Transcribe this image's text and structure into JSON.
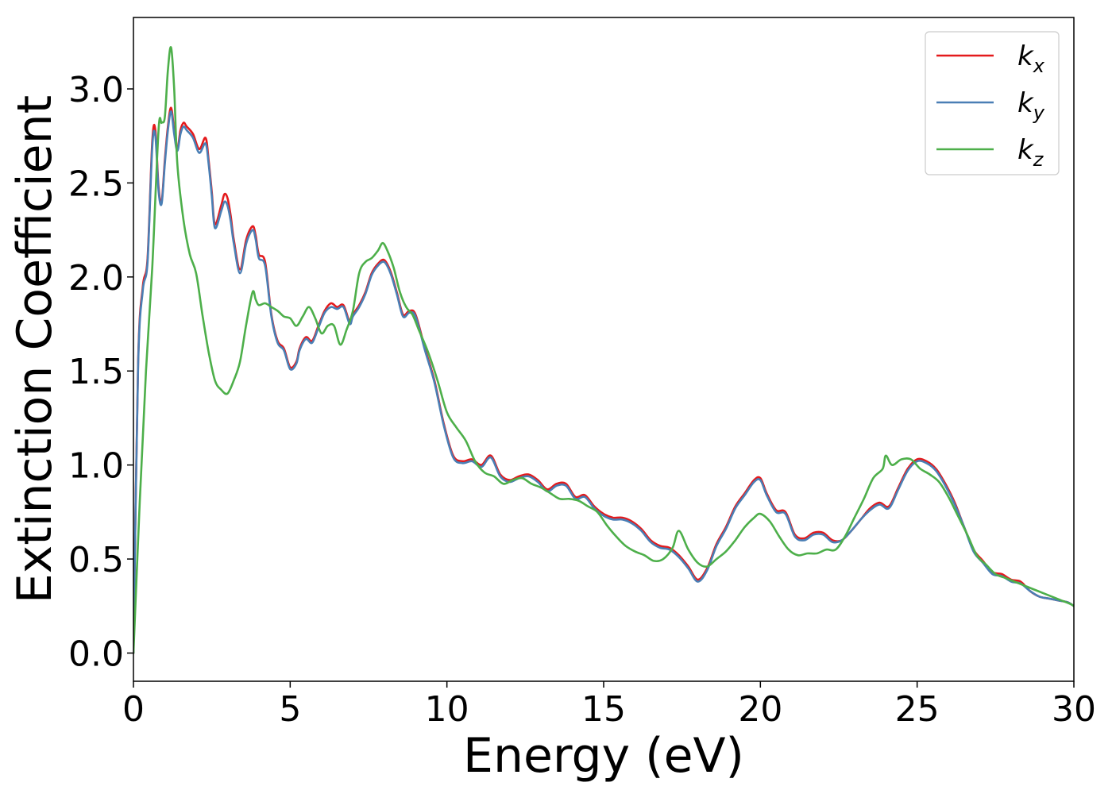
{
  "chart_data": {
    "type": "line",
    "xlabel": "Energy (eV)",
    "ylabel": "Extinction Coefficient",
    "xlim": [
      0,
      30
    ],
    "ylim": [
      -0.15,
      3.38
    ],
    "x_ticks": [
      0,
      5,
      10,
      15,
      20,
      25,
      30
    ],
    "y_ticks": [
      0.0,
      0.5,
      1.0,
      1.5,
      2.0,
      2.5,
      3.0
    ],
    "x_tick_labels": [
      "0",
      "5",
      "10",
      "15",
      "20",
      "25",
      "30"
    ],
    "y_tick_labels": [
      "0.0",
      "0.5",
      "1.0",
      "1.5",
      "2.0",
      "2.5",
      "3.0"
    ],
    "grid": false,
    "legend_position": "top-right",
    "series": [
      {
        "name": "k_x",
        "label_base": "k",
        "label_sub": "x",
        "color": "#e41a1c",
        "x": [
          0.0,
          0.15,
          0.3,
          0.45,
          0.6,
          0.7,
          0.8,
          0.9,
          1.0,
          1.1,
          1.2,
          1.3,
          1.4,
          1.5,
          1.6,
          1.7,
          1.9,
          2.1,
          2.3,
          2.4,
          2.5,
          2.6,
          2.8,
          2.9,
          3.0,
          3.1,
          3.2,
          3.4,
          3.6,
          3.8,
          3.9,
          4.0,
          4.2,
          4.4,
          4.6,
          4.8,
          5.0,
          5.2,
          5.3,
          5.5,
          5.7,
          5.9,
          6.1,
          6.3,
          6.5,
          6.7,
          6.9,
          7.0,
          7.2,
          7.4,
          7.6,
          7.8,
          8.0,
          8.2,
          8.4,
          8.6,
          8.8,
          9.0,
          9.3,
          9.6,
          9.9,
          10.2,
          10.5,
          10.8,
          11.1,
          11.4,
          11.7,
          12.0,
          12.3,
          12.6,
          12.9,
          13.2,
          13.5,
          13.8,
          14.1,
          14.4,
          14.7,
          15.0,
          15.3,
          15.6,
          15.9,
          16.2,
          16.5,
          16.8,
          17.1,
          17.4,
          17.7,
          18.0,
          18.3,
          18.6,
          18.9,
          19.2,
          19.5,
          19.8,
          20.0,
          20.2,
          20.5,
          20.8,
          21.1,
          21.4,
          21.7,
          22.0,
          22.3,
          22.6,
          22.9,
          23.2,
          23.5,
          23.8,
          24.1,
          24.4,
          24.7,
          25.0,
          25.3,
          25.6,
          25.9,
          26.2,
          26.5,
          26.8,
          27.1,
          27.4,
          27.7,
          28.0,
          28.3,
          28.6,
          28.9,
          29.2,
          29.5,
          29.8,
          30.0
        ],
        "y": [
          0.0,
          1.55,
          1.95,
          2.1,
          2.72,
          2.78,
          2.48,
          2.4,
          2.62,
          2.8,
          2.9,
          2.78,
          2.68,
          2.78,
          2.82,
          2.8,
          2.76,
          2.68,
          2.74,
          2.62,
          2.45,
          2.28,
          2.38,
          2.44,
          2.42,
          2.33,
          2.2,
          2.04,
          2.2,
          2.27,
          2.22,
          2.12,
          2.08,
          1.8,
          1.66,
          1.62,
          1.52,
          1.55,
          1.62,
          1.68,
          1.66,
          1.74,
          1.82,
          1.86,
          1.84,
          1.85,
          1.76,
          1.8,
          1.85,
          1.92,
          2.02,
          2.07,
          2.09,
          2.03,
          1.92,
          1.8,
          1.82,
          1.8,
          1.62,
          1.45,
          1.22,
          1.05,
          1.02,
          1.03,
          1.0,
          1.05,
          0.95,
          0.92,
          0.94,
          0.95,
          0.92,
          0.87,
          0.9,
          0.9,
          0.83,
          0.84,
          0.78,
          0.74,
          0.72,
          0.72,
          0.7,
          0.66,
          0.6,
          0.57,
          0.56,
          0.52,
          0.46,
          0.39,
          0.45,
          0.58,
          0.67,
          0.78,
          0.85,
          0.92,
          0.93,
          0.85,
          0.76,
          0.75,
          0.63,
          0.61,
          0.64,
          0.64,
          0.6,
          0.6,
          0.65,
          0.71,
          0.77,
          0.8,
          0.78,
          0.88,
          0.98,
          1.03,
          1.02,
          0.98,
          0.9,
          0.8,
          0.67,
          0.55,
          0.49,
          0.43,
          0.42,
          0.39,
          0.38,
          0.33,
          0.3,
          0.29,
          0.28,
          0.27,
          0.25
        ]
      },
      {
        "name": "k_y",
        "label_base": "k",
        "label_sub": "y",
        "color": "#4a7fb5",
        "x": [
          0.0,
          0.15,
          0.3,
          0.45,
          0.6,
          0.7,
          0.8,
          0.9,
          1.0,
          1.1,
          1.2,
          1.3,
          1.4,
          1.5,
          1.6,
          1.7,
          1.9,
          2.1,
          2.3,
          2.4,
          2.5,
          2.6,
          2.8,
          2.9,
          3.0,
          3.1,
          3.2,
          3.4,
          3.6,
          3.8,
          3.9,
          4.0,
          4.2,
          4.4,
          4.6,
          4.8,
          5.0,
          5.2,
          5.3,
          5.5,
          5.7,
          5.9,
          6.1,
          6.3,
          6.5,
          6.7,
          6.9,
          7.0,
          7.2,
          7.4,
          7.6,
          7.8,
          8.0,
          8.2,
          8.4,
          8.6,
          8.8,
          9.0,
          9.3,
          9.6,
          9.9,
          10.2,
          10.5,
          10.8,
          11.1,
          11.4,
          11.7,
          12.0,
          12.3,
          12.6,
          12.9,
          13.2,
          13.5,
          13.8,
          14.1,
          14.4,
          14.7,
          15.0,
          15.3,
          15.6,
          15.9,
          16.2,
          16.5,
          16.8,
          17.1,
          17.4,
          17.7,
          18.0,
          18.3,
          18.6,
          18.9,
          19.2,
          19.5,
          19.8,
          20.0,
          20.2,
          20.5,
          20.8,
          21.1,
          21.4,
          21.7,
          22.0,
          22.3,
          22.6,
          22.9,
          23.2,
          23.5,
          23.8,
          24.1,
          24.4,
          24.7,
          25.0,
          25.3,
          25.6,
          25.9,
          26.2,
          26.5,
          26.8,
          27.1,
          27.4,
          27.7,
          28.0,
          28.3,
          28.6,
          28.9,
          29.2,
          29.5,
          29.8,
          30.0
        ],
        "y": [
          0.0,
          1.53,
          1.93,
          2.08,
          2.69,
          2.75,
          2.46,
          2.39,
          2.6,
          2.78,
          2.88,
          2.76,
          2.67,
          2.76,
          2.8,
          2.78,
          2.74,
          2.66,
          2.71,
          2.6,
          2.43,
          2.26,
          2.35,
          2.4,
          2.38,
          2.3,
          2.18,
          2.02,
          2.18,
          2.25,
          2.2,
          2.1,
          2.06,
          1.79,
          1.65,
          1.61,
          1.51,
          1.54,
          1.61,
          1.67,
          1.65,
          1.73,
          1.81,
          1.84,
          1.83,
          1.84,
          1.75,
          1.79,
          1.84,
          1.91,
          2.01,
          2.06,
          2.08,
          2.02,
          1.91,
          1.79,
          1.81,
          1.79,
          1.61,
          1.44,
          1.21,
          1.04,
          1.01,
          1.02,
          0.99,
          1.04,
          0.94,
          0.91,
          0.93,
          0.94,
          0.91,
          0.86,
          0.89,
          0.89,
          0.82,
          0.83,
          0.77,
          0.73,
          0.71,
          0.71,
          0.69,
          0.65,
          0.59,
          0.56,
          0.55,
          0.51,
          0.45,
          0.38,
          0.44,
          0.57,
          0.66,
          0.77,
          0.84,
          0.91,
          0.92,
          0.84,
          0.75,
          0.74,
          0.62,
          0.6,
          0.63,
          0.63,
          0.59,
          0.6,
          0.65,
          0.71,
          0.76,
          0.79,
          0.77,
          0.87,
          0.97,
          1.02,
          1.01,
          0.97,
          0.89,
          0.79,
          0.67,
          0.54,
          0.48,
          0.42,
          0.41,
          0.38,
          0.37,
          0.33,
          0.3,
          0.29,
          0.28,
          0.27,
          0.25
        ]
      },
      {
        "name": "k_z",
        "label_base": "k",
        "label_sub": "z",
        "color": "#4daf4a",
        "x": [
          0.0,
          0.2,
          0.4,
          0.6,
          0.8,
          0.9,
          1.0,
          1.1,
          1.2,
          1.3,
          1.4,
          1.6,
          1.8,
          2.0,
          2.2,
          2.4,
          2.6,
          2.8,
          3.0,
          3.2,
          3.4,
          3.6,
          3.8,
          3.9,
          4.0,
          4.2,
          4.4,
          4.6,
          4.8,
          5.0,
          5.2,
          5.4,
          5.6,
          5.8,
          6.0,
          6.2,
          6.4,
          6.6,
          6.8,
          7.0,
          7.2,
          7.4,
          7.6,
          7.8,
          7.95,
          8.1,
          8.3,
          8.5,
          8.7,
          8.9,
          9.1,
          9.4,
          9.7,
          10.0,
          10.3,
          10.6,
          10.9,
          11.2,
          11.5,
          11.8,
          12.1,
          12.4,
          12.7,
          13.0,
          13.3,
          13.6,
          13.9,
          14.2,
          14.5,
          14.8,
          15.1,
          15.4,
          15.7,
          16.0,
          16.3,
          16.6,
          16.9,
          17.2,
          17.4,
          17.7,
          18.0,
          18.3,
          18.6,
          18.9,
          19.2,
          19.5,
          19.8,
          20.0,
          20.3,
          20.6,
          20.9,
          21.2,
          21.5,
          21.8,
          22.1,
          22.4,
          22.7,
          23.0,
          23.3,
          23.6,
          23.9,
          24.0,
          24.2,
          24.5,
          24.8,
          25.1,
          25.4,
          25.7,
          26.0,
          26.3,
          26.6,
          26.9,
          27.2,
          27.5,
          27.8,
          28.1,
          28.4,
          28.7,
          29.0,
          29.3,
          29.6,
          29.9,
          30.0
        ],
        "y": [
          0.0,
          0.8,
          1.5,
          2.05,
          2.78,
          2.82,
          2.85,
          3.1,
          3.22,
          3.0,
          2.6,
          2.3,
          2.12,
          2.02,
          1.8,
          1.6,
          1.45,
          1.4,
          1.38,
          1.45,
          1.55,
          1.75,
          1.92,
          1.88,
          1.85,
          1.86,
          1.84,
          1.82,
          1.79,
          1.78,
          1.74,
          1.79,
          1.84,
          1.78,
          1.7,
          1.74,
          1.74,
          1.64,
          1.72,
          1.82,
          2.02,
          2.08,
          2.1,
          2.14,
          2.18,
          2.14,
          2.05,
          1.92,
          1.84,
          1.8,
          1.72,
          1.6,
          1.45,
          1.28,
          1.2,
          1.13,
          1.02,
          0.96,
          0.94,
          0.9,
          0.92,
          0.93,
          0.9,
          0.88,
          0.85,
          0.82,
          0.82,
          0.81,
          0.78,
          0.75,
          0.68,
          0.62,
          0.57,
          0.54,
          0.52,
          0.49,
          0.5,
          0.56,
          0.65,
          0.55,
          0.48,
          0.46,
          0.5,
          0.54,
          0.6,
          0.67,
          0.72,
          0.74,
          0.7,
          0.62,
          0.55,
          0.52,
          0.53,
          0.53,
          0.55,
          0.55,
          0.62,
          0.72,
          0.82,
          0.93,
          0.98,
          1.05,
          1.0,
          1.03,
          1.03,
          0.98,
          0.95,
          0.91,
          0.83,
          0.73,
          0.63,
          0.52,
          0.47,
          0.42,
          0.4,
          0.38,
          0.36,
          0.34,
          0.32,
          0.3,
          0.28,
          0.26,
          0.25
        ]
      }
    ]
  }
}
